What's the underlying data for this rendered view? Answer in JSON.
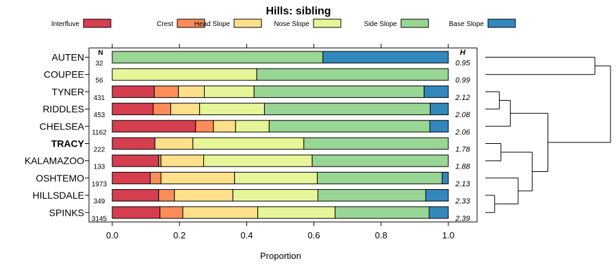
{
  "chart_data": {
    "type": "bar",
    "orientation": "horizontal",
    "stacked": true,
    "title": "Hills: sibling",
    "xlabel": "Proportion",
    "xlim": [
      0,
      1
    ],
    "xticks": [
      "0.0",
      "0.2",
      "0.4",
      "0.6",
      "0.8",
      "1.0"
    ],
    "n_header": "N",
    "h_header": "H",
    "highlight": "TRACY",
    "categories": [
      "AUTEN",
      "COUPEE",
      "TYNER",
      "RIDDLES",
      "CHELSEA",
      "TRACY",
      "KALAMAZOO",
      "OSHTEMO",
      "HILLSDALE",
      "SPINKS"
    ],
    "n": [
      "32",
      "56",
      "431",
      "453",
      "1162",
      "222",
      "133",
      "1973",
      "349",
      "3145"
    ],
    "h": [
      "0.95",
      "0.99",
      "2.12",
      "2.08",
      "2.06",
      "1.78",
      "1.88",
      "2.13",
      "2.33",
      "2.39"
    ],
    "series": [
      {
        "name": "Interfluve",
        "color": "#D53E4F",
        "values": [
          0,
          0,
          0.125,
          0.122,
          0.248,
          0.127,
          0.138,
          0.113,
          0.138,
          0.142
        ]
      },
      {
        "name": "Crest",
        "color": "#FC8D59",
        "values": [
          0,
          0,
          0.072,
          0.052,
          0.053,
          0,
          0.007,
          0.032,
          0.047,
          0.068
        ]
      },
      {
        "name": "Head Slope",
        "color": "#FEE08B",
        "values": [
          0,
          0,
          0.077,
          0.086,
          0.066,
          0.113,
          0.127,
          0.219,
          0.174,
          0.223
        ]
      },
      {
        "name": "Nose Slope",
        "color": "#E6F598",
        "values": [
          0,
          0.43,
          0.148,
          0.193,
          0.1,
          0.33,
          0.323,
          0.246,
          0.253,
          0.23
        ]
      },
      {
        "name": "Side Slope",
        "color": "#99D594",
        "values": [
          0.627,
          0.57,
          0.506,
          0.493,
          0.478,
          0.43,
          0.405,
          0.372,
          0.321,
          0.28
        ]
      },
      {
        "name": "Base Slope",
        "color": "#3288BD",
        "values": [
          0.373,
          0,
          0.072,
          0.054,
          0.055,
          0,
          0,
          0.018,
          0.067,
          0.057
        ]
      }
    ],
    "dendrogram": {
      "order": [
        "AUTEN",
        "COUPEE",
        "TYNER",
        "RIDDLES",
        "CHELSEA",
        "TRACY",
        "KALAMAZOO",
        "OSHTEMO",
        "HILLSDALE",
        "SPINKS"
      ],
      "merges": [
        {
          "left": "HILLSDALE",
          "right": "SPINKS",
          "height": 0.6
        },
        {
          "left": "TYNER",
          "right": "RIDDLES",
          "height": 0.9
        },
        {
          "left": "TRACY",
          "right": "KALAMAZOO",
          "height": 1.0
        },
        {
          "left": "merge1",
          "right": "CHELSEA",
          "height": 1.6
        },
        {
          "left": "OSHTEMO",
          "right": "merge0",
          "height": 2.1
        },
        {
          "left": "merge2",
          "right": "merge4",
          "height": 3.0
        },
        {
          "left": "merge3",
          "right": "merge5",
          "height": 4.0
        },
        {
          "left": "AUTEN",
          "right": "COUPEE",
          "height": 7.0
        },
        {
          "left": "merge7",
          "right": "merge6",
          "height": 8.0
        }
      ],
      "max_height": 8.0
    }
  }
}
